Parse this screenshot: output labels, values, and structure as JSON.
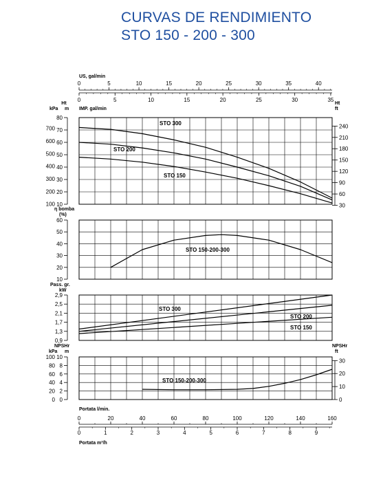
{
  "title": {
    "line1": "CURVAS DE RENDIMIENTO",
    "line2": "STO 150 - 200 - 300"
  },
  "colors": {
    "title": "#1f4fa0",
    "ink": "#000000",
    "grid": "#000000"
  },
  "top_axes": {
    "us_label": "US, gal/min",
    "us_ticks": [
      "0",
      "5",
      "10",
      "15",
      "20",
      "25",
      "30",
      "35",
      "40"
    ],
    "imp_label": "IMP. gal/min",
    "imp_ticks": [
      "0",
      "5",
      "10",
      "15",
      "20",
      "25",
      "30",
      "35"
    ]
  },
  "bottom_axes": {
    "lmin_label": "Portata l/min.",
    "lmin_ticks": [
      "0",
      "20",
      "40",
      "60",
      "80",
      "100",
      "120",
      "140",
      "160"
    ],
    "m3h_label": "Portata m³/h",
    "m3h_ticks": [
      "0",
      "1",
      "2",
      "3",
      "4",
      "5",
      "6",
      "7",
      "8",
      "9"
    ]
  },
  "chart_data": [
    {
      "type": "line",
      "panel": "head",
      "left_unit_top": "Ht",
      "left_units": [
        "kPa",
        "m"
      ],
      "right_units": [
        "Ht",
        "ft"
      ],
      "left_kpa_ticks": [
        "100",
        "200",
        "300",
        "400",
        "500",
        "600",
        "700"
      ],
      "left_m_ticks": [
        "10",
        "20",
        "30",
        "40",
        "50",
        "60",
        "70",
        "80"
      ],
      "right_ft_ticks": [
        "30",
        "60",
        "90",
        "120",
        "150",
        "180",
        "210",
        "240"
      ],
      "x_unit": "l/min",
      "xlim": [
        0,
        160
      ],
      "ylim": [
        10,
        80
      ],
      "series": [
        {
          "name": "STO 300",
          "x": [
            0,
            20,
            40,
            60,
            80,
            100,
            120,
            140,
            160
          ],
          "y": [
            72,
            70.5,
            67,
            62,
            56,
            48,
            39,
            28,
            15
          ]
        },
        {
          "name": "STO 200",
          "x": [
            0,
            20,
            40,
            60,
            80,
            100,
            120,
            140,
            160
          ],
          "y": [
            60,
            58.5,
            55.5,
            51.5,
            46.5,
            40,
            33,
            24.5,
            13.5
          ]
        },
        {
          "name": "STO 150",
          "x": [
            0,
            20,
            40,
            60,
            80,
            100,
            120,
            140,
            160
          ],
          "y": [
            48,
            46.5,
            44,
            40.5,
            36,
            31,
            25,
            18.5,
            11
          ]
        }
      ]
    },
    {
      "type": "line",
      "panel": "efficiency",
      "ylabel": [
        "η bomba",
        "(%)"
      ],
      "y_ticks": [
        "10",
        "20",
        "30",
        "40",
        "50",
        "60"
      ],
      "x_unit": "l/min",
      "xlim": [
        0,
        160
      ],
      "ylim": [
        10,
        60
      ],
      "series": [
        {
          "name": "STO 150-200-300",
          "x": [
            20,
            40,
            60,
            80,
            90,
            100,
            120,
            140,
            160
          ],
          "y": [
            20,
            35,
            43,
            47,
            47.7,
            47,
            43,
            35,
            24
          ]
        }
      ]
    },
    {
      "type": "line",
      "panel": "power",
      "ylabel": [
        "Pass. gr.",
        "kW"
      ],
      "y_ticks": [
        "0,9",
        "1,3",
        "1,7",
        "2,1",
        "2,5",
        "2,9"
      ],
      "x_unit": "l/min",
      "xlim": [
        0,
        160
      ],
      "ylim": [
        0.9,
        2.9
      ],
      "series": [
        {
          "name": "STO 300",
          "x": [
            0,
            160
          ],
          "y": [
            1.4,
            2.9
          ]
        },
        {
          "name": "STO 200",
          "x": [
            0,
            160
          ],
          "y": [
            1.3,
            2.45
          ]
        },
        {
          "name": "STO 150",
          "x": [
            0,
            160
          ],
          "y": [
            1.2,
            1.92
          ]
        }
      ]
    },
    {
      "type": "line",
      "panel": "npsh",
      "left_units": [
        "NPSHr",
        "kPa",
        "m"
      ],
      "right_units": [
        "NPSHr",
        "ft"
      ],
      "left_kpa_ticks": [
        "0",
        "20",
        "40",
        "60",
        "80",
        "100"
      ],
      "left_m_ticks": [
        "0",
        "2",
        "4",
        "6",
        "8",
        "10"
      ],
      "right_ft_ticks": [
        "0",
        "10",
        "20",
        "30"
      ],
      "x_unit": "l/min",
      "xlim": [
        0,
        160
      ],
      "ylim": [
        0,
        10
      ],
      "series": [
        {
          "name": "STO 150-200-300",
          "x": [
            40,
            60,
            80,
            100,
            110,
            120,
            130,
            140,
            150,
            160
          ],
          "y": [
            2.4,
            2.3,
            2.3,
            2.4,
            2.6,
            3.1,
            3.8,
            4.7,
            5.8,
            7.1
          ]
        }
      ]
    }
  ]
}
